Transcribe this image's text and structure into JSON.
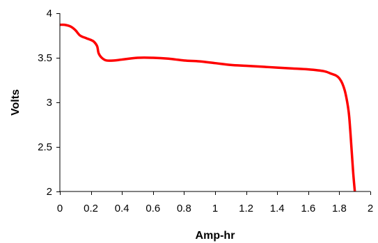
{
  "chart_data": {
    "type": "line",
    "title": "",
    "xlabel": "Amp-hr",
    "ylabel": "Volts",
    "xlim": [
      0,
      2
    ],
    "ylim": [
      2,
      4
    ],
    "x_ticks": [
      "0",
      "0.2",
      "0.4",
      "0.6",
      "0.8",
      "1",
      "1.2",
      "1.4",
      "1.6",
      "1.8",
      "2"
    ],
    "y_ticks": [
      "2",
      "2.5",
      "3",
      "3.5",
      "4"
    ],
    "grid": false,
    "legend": "none",
    "series": [
      {
        "color": "#ff0000",
        "x": [
          0,
          0.03,
          0.07,
          0.1,
          0.13,
          0.17,
          0.2,
          0.22,
          0.24,
          0.25,
          0.27,
          0.3,
          0.35,
          0.4,
          0.5,
          0.6,
          0.7,
          0.8,
          0.9,
          1.0,
          1.1,
          1.2,
          1.3,
          1.4,
          1.5,
          1.6,
          1.7,
          1.75,
          1.78,
          1.8,
          1.82,
          1.84,
          1.86,
          1.87,
          1.88,
          1.89,
          1.9
        ],
        "y": [
          3.87,
          3.87,
          3.85,
          3.81,
          3.75,
          3.72,
          3.7,
          3.68,
          3.63,
          3.55,
          3.5,
          3.47,
          3.47,
          3.48,
          3.5,
          3.5,
          3.49,
          3.47,
          3.46,
          3.44,
          3.42,
          3.41,
          3.4,
          3.39,
          3.38,
          3.37,
          3.35,
          3.32,
          3.3,
          3.27,
          3.21,
          3.1,
          2.9,
          2.7,
          2.45,
          2.2,
          2.0
        ]
      }
    ]
  }
}
